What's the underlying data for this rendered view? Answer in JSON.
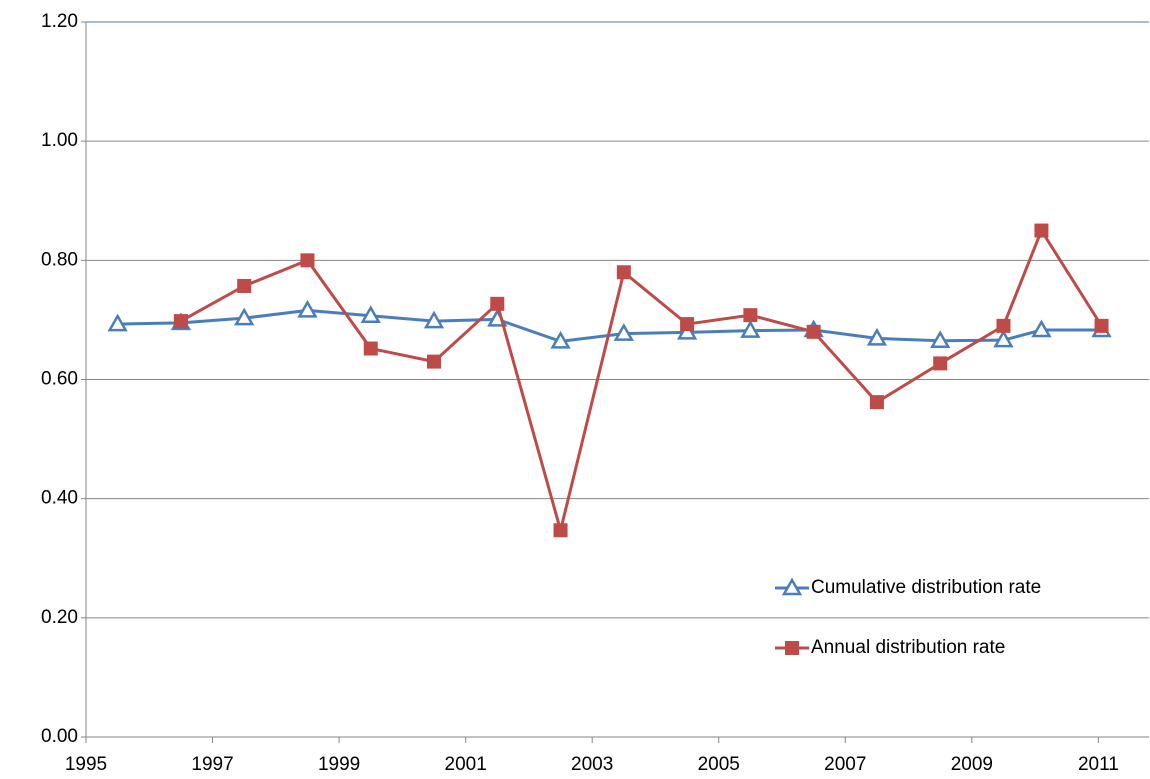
{
  "chart_data": {
    "type": "line",
    "x": [
      1995.5,
      1996.5,
      1997.5,
      1998.5,
      1999.5,
      2000.5,
      2001.5,
      2002.5,
      2003.5,
      2004.5,
      2005.5,
      2006.5,
      2007.5,
      2008.5,
      2009.5,
      2010.1,
      2011.05
    ],
    "series": [
      {
        "name": "Cumulative distribution rate",
        "color": "#4a7ebb",
        "marker": "triangle",
        "values": [
          0.693,
          0.695,
          0.703,
          0.716,
          0.707,
          0.698,
          0.701,
          0.664,
          0.677,
          0.679,
          0.682,
          0.683,
          0.669,
          0.665,
          0.666,
          0.683,
          0.683
        ]
      },
      {
        "name": "Annual distribution rate",
        "color": "#be4b48",
        "marker": "square",
        "values": [
          null,
          0.698,
          0.757,
          0.8,
          0.652,
          0.63,
          0.727,
          0.347,
          0.78,
          0.693,
          0.708,
          0.68,
          0.562,
          0.627,
          0.69,
          0.85,
          0.69
        ]
      }
    ],
    "xlim": [
      1995,
      2011.8
    ],
    "xticks": [
      1995,
      1997,
      1999,
      2001,
      2003,
      2005,
      2007,
      2009,
      2011
    ],
    "ylim": [
      0,
      1.2
    ],
    "yticks": [
      {
        "value": 0,
        "label": "0.00"
      },
      {
        "value": 0.2,
        "label": "0.20"
      },
      {
        "value": 0.4,
        "label": "0.40"
      },
      {
        "value": 0.6,
        "label": "0.60"
      },
      {
        "value": 0.8,
        "label": "0.80"
      },
      {
        "value": 1,
        "label": "1.00"
      },
      {
        "value": 1.2,
        "label": "1.20"
      }
    ],
    "grid": true,
    "legend": "lower-right"
  }
}
